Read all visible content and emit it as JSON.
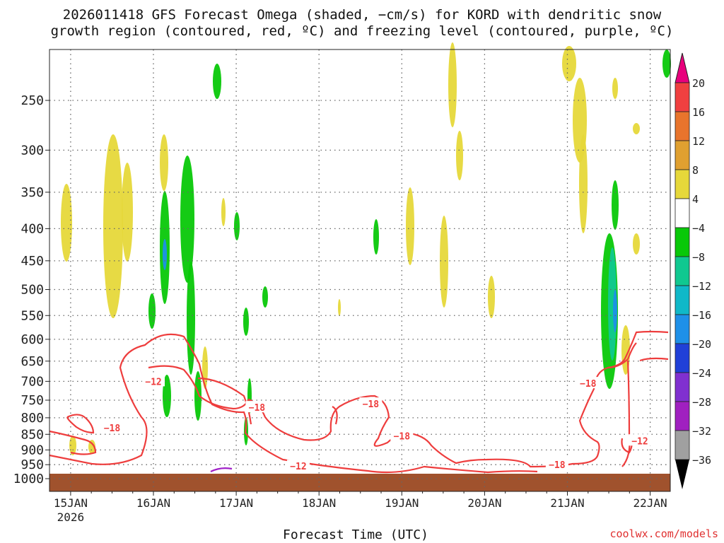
{
  "chart_data": {
    "type": "heatmap",
    "title": "2026011418 GFS Forecast Omega (shaded, −cm/s) for KORD with dendritic snow",
    "subtitle": "growth region (contoured, red, ºC) and freezing level (contoured, purple, ºC)",
    "xlabel": "Forecast Time (UTC)",
    "ylabel": "",
    "x_ticks": [
      "15JAN",
      "16JAN",
      "17JAN",
      "18JAN",
      "19JAN",
      "20JAN",
      "21JAN",
      "22JAN"
    ],
    "x_year_label": "2026",
    "y_ticks": [
      250,
      300,
      350,
      400,
      450,
      500,
      550,
      600,
      650,
      700,
      750,
      800,
      850,
      900,
      950,
      1000
    ],
    "ylim": [
      1000,
      200
    ],
    "grid": true,
    "colorbar": {
      "labels": [
        "20",
        "16",
        "12",
        "8",
        "4",
        "−4",
        "−8",
        "−12",
        "−16",
        "−20",
        "−24",
        "−28",
        "−32",
        "−36"
      ],
      "colors": [
        "#f04040",
        "#e8742c",
        "#e0a030",
        "#e6d83a",
        "#ffffff",
        "#08c808",
        "#10c890",
        "#10b8c8",
        "#1e90e8",
        "#2040d8",
        "#8030d0",
        "#a020c0",
        "#a0a0a0"
      ],
      "top_arrow_color": "#e8007c",
      "bottom_arrow_color": "#000000"
    },
    "contour_labels": [
      {
        "value": "−12",
        "time": "16JAN 00Z",
        "pressure": 700
      },
      {
        "value": "−18",
        "time": "15JAN 12Z",
        "pressure": 830
      },
      {
        "value": "−18",
        "time": "17JAN 06Z",
        "pressure": 770
      },
      {
        "value": "−12",
        "time": "17JAN 18Z",
        "pressure": 955
      },
      {
        "value": "−18",
        "time": "18JAN 15Z",
        "pressure": 760
      },
      {
        "value": "−18",
        "time": "19JAN 00Z",
        "pressure": 855
      },
      {
        "value": "−18",
        "time": "20JAN 21Z",
        "pressure": 950
      },
      {
        "value": "−18",
        "time": "21JAN 06Z",
        "pressure": 705
      },
      {
        "value": "−12",
        "time": "21JAN 21Z",
        "pressure": 870
      }
    ],
    "credit": "coolwx.com/models"
  }
}
